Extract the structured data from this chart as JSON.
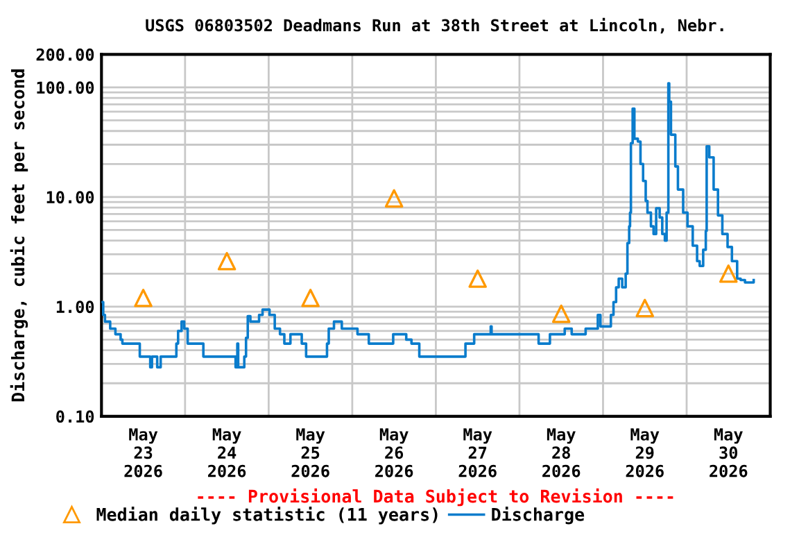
{
  "chart_data": {
    "type": "step",
    "title": "USGS 06803502 Deadmans Run at 38th Street at Lincoln, Nebr.",
    "ylabel": "Discharge, cubic feet per second",
    "annotations": [
      "---- Provisional Data Subject to Revision ----"
    ],
    "log": "y",
    "grid": true,
    "legend": "bottom",
    "xlim": [
      "2026-05-23T00:00",
      "2026-05-31T00:00"
    ],
    "xticks": [
      {
        "value": "2026-05-23T12:00",
        "label": "May\n23\n2026"
      },
      {
        "value": "2026-05-24T12:00",
        "label": "May\n24\n2026"
      },
      {
        "value": "2026-05-25T12:00",
        "label": "May\n25\n2026"
      },
      {
        "value": "2026-05-26T12:00",
        "label": "May\n26\n2026"
      },
      {
        "value": "2026-05-27T12:00",
        "label": "May\n27\n2026"
      },
      {
        "value": "2026-05-28T12:00",
        "label": "May\n28\n2026"
      },
      {
        "value": "2026-05-29T12:00",
        "label": "May\n29\n2026"
      },
      {
        "value": "2026-05-30T12:00",
        "label": "May\n30\n2026"
      },
      {
        "value": "2026-05-24T00:00",
        "label": null
      },
      {
        "value": "2026-05-25T00:00",
        "label": null
      },
      {
        "value": "2026-05-26T00:00",
        "label": null
      },
      {
        "value": "2026-05-27T00:00",
        "label": null
      },
      {
        "value": "2026-05-28T00:00",
        "label": null
      },
      {
        "value": "2026-05-29T00:00",
        "label": null
      },
      {
        "value": "2026-05-30T00:00",
        "label": null
      }
    ],
    "ylim": [
      0.1,
      200
    ],
    "yticks": [
      {
        "value": 0.1,
        "label": "0.10"
      },
      {
        "value": 1,
        "label": "1.00"
      },
      {
        "value": 10,
        "label": "10.00"
      },
      {
        "value": 100,
        "label": "100.00"
      },
      {
        "value": 200,
        "label": "200.00"
      },
      {
        "value": 0.2,
        "label": null
      },
      {
        "value": 0.3,
        "label": null
      },
      {
        "value": 0.4,
        "label": null
      },
      {
        "value": 0.5,
        "label": null
      },
      {
        "value": 0.6,
        "label": null
      },
      {
        "value": 0.7,
        "label": null
      },
      {
        "value": 0.8,
        "label": null
      },
      {
        "value": 0.9,
        "label": null
      },
      {
        "value": 2,
        "label": null
      },
      {
        "value": 3,
        "label": null
      },
      {
        "value": 4,
        "label": null
      },
      {
        "value": 5,
        "label": null
      },
      {
        "value": 6,
        "label": null
      },
      {
        "value": 7,
        "label": null
      },
      {
        "value": 8,
        "label": null
      },
      {
        "value": 9,
        "label": null
      },
      {
        "value": 20,
        "label": null
      },
      {
        "value": 30,
        "label": null
      },
      {
        "value": 40,
        "label": null
      },
      {
        "value": 50,
        "label": null
      },
      {
        "value": 60,
        "label": null
      },
      {
        "value": 70,
        "label": null
      },
      {
        "value": 80,
        "label": null
      },
      {
        "value": 90,
        "label": null
      }
    ],
    "series": [
      {
        "name": "Median daily statistic (11 years)",
        "type": "scatter",
        "marker": "triangle",
        "color": "#ff9900",
        "x": [
          "2026-05-23T12:00",
          "2026-05-24T12:00",
          "2026-05-25T12:00",
          "2026-05-26T12:00",
          "2026-05-27T12:00",
          "2026-05-28T12:00",
          "2026-05-29T12:00",
          "2026-05-30T12:00"
        ],
        "values": [
          1.2,
          2.6,
          1.2,
          9.7,
          1.8,
          0.86,
          0.97,
          2.0
        ]
      },
      {
        "name": "Discharge",
        "color": "#0a7ccc",
        "x": [
          "2026-05-23T00:00",
          "2026-05-23T00:30",
          "2026-05-23T01:00",
          "2026-05-23T02:30",
          "2026-05-23T04:00",
          "2026-05-23T05:30",
          "2026-05-23T06:00",
          "2026-05-23T11:00",
          "2026-05-23T14:00",
          "2026-05-23T14:30",
          "2026-05-23T16:00",
          "2026-05-23T17:00",
          "2026-05-23T21:30",
          "2026-05-23T22:00",
          "2026-05-23T23:00",
          "2026-05-23T23:45",
          "2026-05-24T00:45",
          "2026-05-24T05:15",
          "2026-05-24T14:30",
          "2026-05-24T15:00",
          "2026-05-24T15:15",
          "2026-05-24T17:00",
          "2026-05-24T17:30",
          "2026-05-24T18:00",
          "2026-05-24T18:45",
          "2026-05-24T21:15",
          "2026-05-24T22:15",
          "2026-05-25T00:15",
          "2026-05-25T01:45",
          "2026-05-25T03:15",
          "2026-05-25T04:30",
          "2026-05-25T06:15",
          "2026-05-25T09:30",
          "2026-05-25T10:45",
          "2026-05-25T16:45",
          "2026-05-25T17:15",
          "2026-05-25T18:45",
          "2026-05-25T21:00",
          "2026-05-26T01:30",
          "2026-05-26T04:45",
          "2026-05-26T11:45",
          "2026-05-26T15:30",
          "2026-05-26T17:00",
          "2026-05-26T19:15",
          "2026-05-27T08:30",
          "2026-05-27T11:00",
          "2026-05-27T15:45",
          "2026-05-27T16:00",
          "2026-05-28T05:30",
          "2026-05-28T08:45",
          "2026-05-28T13:00",
          "2026-05-28T15:00",
          "2026-05-28T19:00",
          "2026-05-28T22:30",
          "2026-05-28T23:15",
          "2026-05-29T02:15",
          "2026-05-29T03:00",
          "2026-05-29T03:45",
          "2026-05-29T04:30",
          "2026-05-29T05:30",
          "2026-05-29T06:30",
          "2026-05-29T07:00",
          "2026-05-29T07:30",
          "2026-05-29T07:45",
          "2026-05-29T08:00",
          "2026-05-29T08:30",
          "2026-05-29T09:00",
          "2026-05-29T10:00",
          "2026-05-29T10:45",
          "2026-05-29T11:30",
          "2026-05-29T12:15",
          "2026-05-29T12:45",
          "2026-05-29T13:45",
          "2026-05-29T14:30",
          "2026-05-29T15:15",
          "2026-05-29T16:15",
          "2026-05-29T17:00",
          "2026-05-29T17:45",
          "2026-05-29T18:15",
          "2026-05-29T18:45",
          "2026-05-29T19:00",
          "2026-05-29T19:30",
          "2026-05-29T20:45",
          "2026-05-29T21:30",
          "2026-05-29T23:00",
          "2026-05-30T00:15",
          "2026-05-30T01:45",
          "2026-05-30T03:00",
          "2026-05-30T03:45",
          "2026-05-30T04:45",
          "2026-05-30T05:30",
          "2026-05-30T05:45",
          "2026-05-30T06:30",
          "2026-05-30T07:45",
          "2026-05-30T09:00",
          "2026-05-30T10:15",
          "2026-05-30T11:45",
          "2026-05-30T13:00",
          "2026-05-30T14:30",
          "2026-05-30T15:30",
          "2026-05-30T16:45",
          "2026-05-30T19:15"
        ],
        "values": [
          1.1,
          0.84,
          0.73,
          0.63,
          0.56,
          0.5,
          0.46,
          0.35,
          0.28,
          0.35,
          0.28,
          0.35,
          0.46,
          0.6,
          0.73,
          0.63,
          0.46,
          0.35,
          0.28,
          0.46,
          0.28,
          0.35,
          0.52,
          0.82,
          0.73,
          0.84,
          0.94,
          0.84,
          0.63,
          0.56,
          0.46,
          0.56,
          0.46,
          0.35,
          0.46,
          0.63,
          0.73,
          0.63,
          0.56,
          0.46,
          0.56,
          0.5,
          0.46,
          0.35,
          0.46,
          0.56,
          0.66,
          0.56,
          0.46,
          0.56,
          0.63,
          0.56,
          0.63,
          0.84,
          0.66,
          0.84,
          1.1,
          1.5,
          1.8,
          1.5,
          2.0,
          3.8,
          5.4,
          7.2,
          31,
          64,
          34,
          32,
          20,
          14,
          9.2,
          7.2,
          5.4,
          4.6,
          7.9,
          6.5,
          4.6,
          4.0,
          7.2,
          109,
          74,
          37,
          19,
          11.7,
          7.2,
          5.4,
          3.6,
          2.6,
          2.35,
          3.3,
          4.9,
          29,
          23,
          11.7,
          6.8,
          4.6,
          3.5,
          2.6,
          1.8,
          1.75,
          1.66,
          1.75
        ]
      }
    ]
  }
}
